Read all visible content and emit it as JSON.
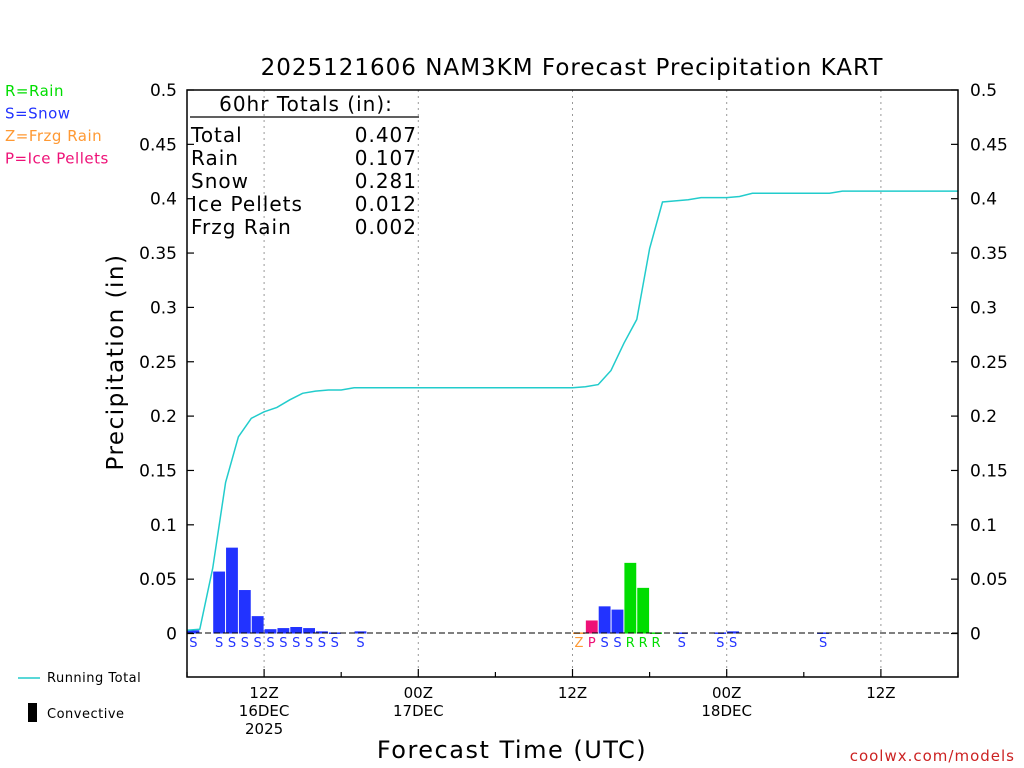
{
  "chart_data": {
    "type": "bar",
    "title": "2025121606 NAM3KM Forecast Precipitation KART",
    "xlabel": "Forecast Time (UTC)",
    "ylabel": "Precipitation (in)",
    "ylim": [
      -0.04,
      0.5
    ],
    "yticks": [
      0,
      0.05,
      0.1,
      0.15,
      0.2,
      0.25,
      0.3,
      0.35,
      0.4,
      0.45,
      0.5
    ],
    "ytick_labels": [
      "0",
      "0.05",
      "0.1",
      "0.15",
      "0.2",
      "0.25",
      "0.3",
      "0.35",
      "0.4",
      "0.45",
      "0.5"
    ],
    "x_unit": "forecast hour from 06Z 16DEC",
    "xlim": [
      0,
      60
    ],
    "xticks": [
      {
        "hour": 6,
        "line1": "12Z",
        "line2": "16DEC",
        "line3": "2025"
      },
      {
        "hour": 18,
        "line1": "00Z",
        "line2": "17DEC",
        "line3": ""
      },
      {
        "hour": 30,
        "line1": "12Z",
        "line2": "",
        "line3": ""
      },
      {
        "hour": 42,
        "line1": "00Z",
        "line2": "18DEC",
        "line3": ""
      },
      {
        "hour": 54,
        "line1": "12Z",
        "line2": "",
        "line3": ""
      }
    ],
    "type_colors": {
      "R": "#00dd00",
      "S": "#2233ff",
      "Z": "#ff9933",
      "P": "#ee1177"
    },
    "legend": [
      {
        "code": "R",
        "label": "R=Rain"
      },
      {
        "code": "S",
        "label": "S=Snow"
      },
      {
        "code": "Z",
        "label": "Z=Frzg Rain"
      },
      {
        "code": "P",
        "label": "P=Ice Pellets"
      }
    ],
    "bars": [
      {
        "hour": 1,
        "value": 0.003,
        "type": "S"
      },
      {
        "hour": 3,
        "value": 0.057,
        "type": "S"
      },
      {
        "hour": 4,
        "value": 0.079,
        "type": "S"
      },
      {
        "hour": 5,
        "value": 0.04,
        "type": "S"
      },
      {
        "hour": 6,
        "value": 0.016,
        "type": "S"
      },
      {
        "hour": 7,
        "value": 0.004,
        "type": "S"
      },
      {
        "hour": 8,
        "value": 0.005,
        "type": "S"
      },
      {
        "hour": 9,
        "value": 0.006,
        "type": "S"
      },
      {
        "hour": 10,
        "value": 0.005,
        "type": "S"
      },
      {
        "hour": 11,
        "value": 0.002,
        "type": "S"
      },
      {
        "hour": 12,
        "value": 0.001,
        "type": "S"
      },
      {
        "hour": 14,
        "value": 0.002,
        "type": "S"
      },
      {
        "hour": 31,
        "value": 0.001,
        "type": "Z"
      },
      {
        "hour": 32,
        "value": 0.012,
        "type": "P"
      },
      {
        "hour": 33,
        "value": 0.025,
        "type": "S"
      },
      {
        "hour": 34,
        "value": 0.022,
        "type": "S"
      },
      {
        "hour": 35,
        "value": 0.065,
        "type": "R"
      },
      {
        "hour": 36,
        "value": 0.042,
        "type": "R"
      },
      {
        "hour": 37,
        "value": 0.001,
        "type": "R"
      },
      {
        "hour": 39,
        "value": 0.001,
        "type": "S"
      },
      {
        "hour": 42,
        "value": 0.001,
        "type": "S"
      },
      {
        "hour": 43,
        "value": 0.002,
        "type": "S"
      },
      {
        "hour": 50,
        "value": 0.001,
        "type": "S"
      }
    ],
    "running_total": {
      "name": "Running Total",
      "color": "#22cccc",
      "hours": [
        0,
        1,
        2,
        3,
        4,
        5,
        6,
        7,
        8,
        9,
        10,
        11,
        12,
        13,
        14,
        30,
        31,
        32,
        33,
        34,
        35,
        36,
        37,
        38,
        39,
        40,
        41,
        42,
        43,
        44,
        45,
        46,
        47,
        48,
        49,
        50,
        51,
        60
      ],
      "values": [
        0.003,
        0.004,
        0.06,
        0.139,
        0.181,
        0.198,
        0.204,
        0.208,
        0.215,
        0.221,
        0.223,
        0.224,
        0.224,
        0.226,
        0.226,
        0.226,
        0.227,
        0.229,
        0.242,
        0.267,
        0.289,
        0.354,
        0.397,
        0.398,
        0.399,
        0.401,
        0.401,
        0.401,
        0.402,
        0.405,
        0.405,
        0.405,
        0.405,
        0.405,
        0.405,
        0.405,
        0.407,
        0.407
      ]
    },
    "totals_box": {
      "heading": "60hr Totals (in):",
      "rows": [
        {
          "label": "Total",
          "value": "0.407"
        },
        {
          "label": "Rain",
          "value": "0.107"
        },
        {
          "label": "Snow",
          "value": "0.281"
        },
        {
          "label": "Ice Pellets",
          "value": "0.012"
        },
        {
          "label": "Frzg Rain",
          "value": "0.002"
        }
      ]
    },
    "bottom_legend": {
      "running_total_label": "Running Total",
      "convective_label": "Convective"
    }
  },
  "credit": "coolwx.com/models"
}
